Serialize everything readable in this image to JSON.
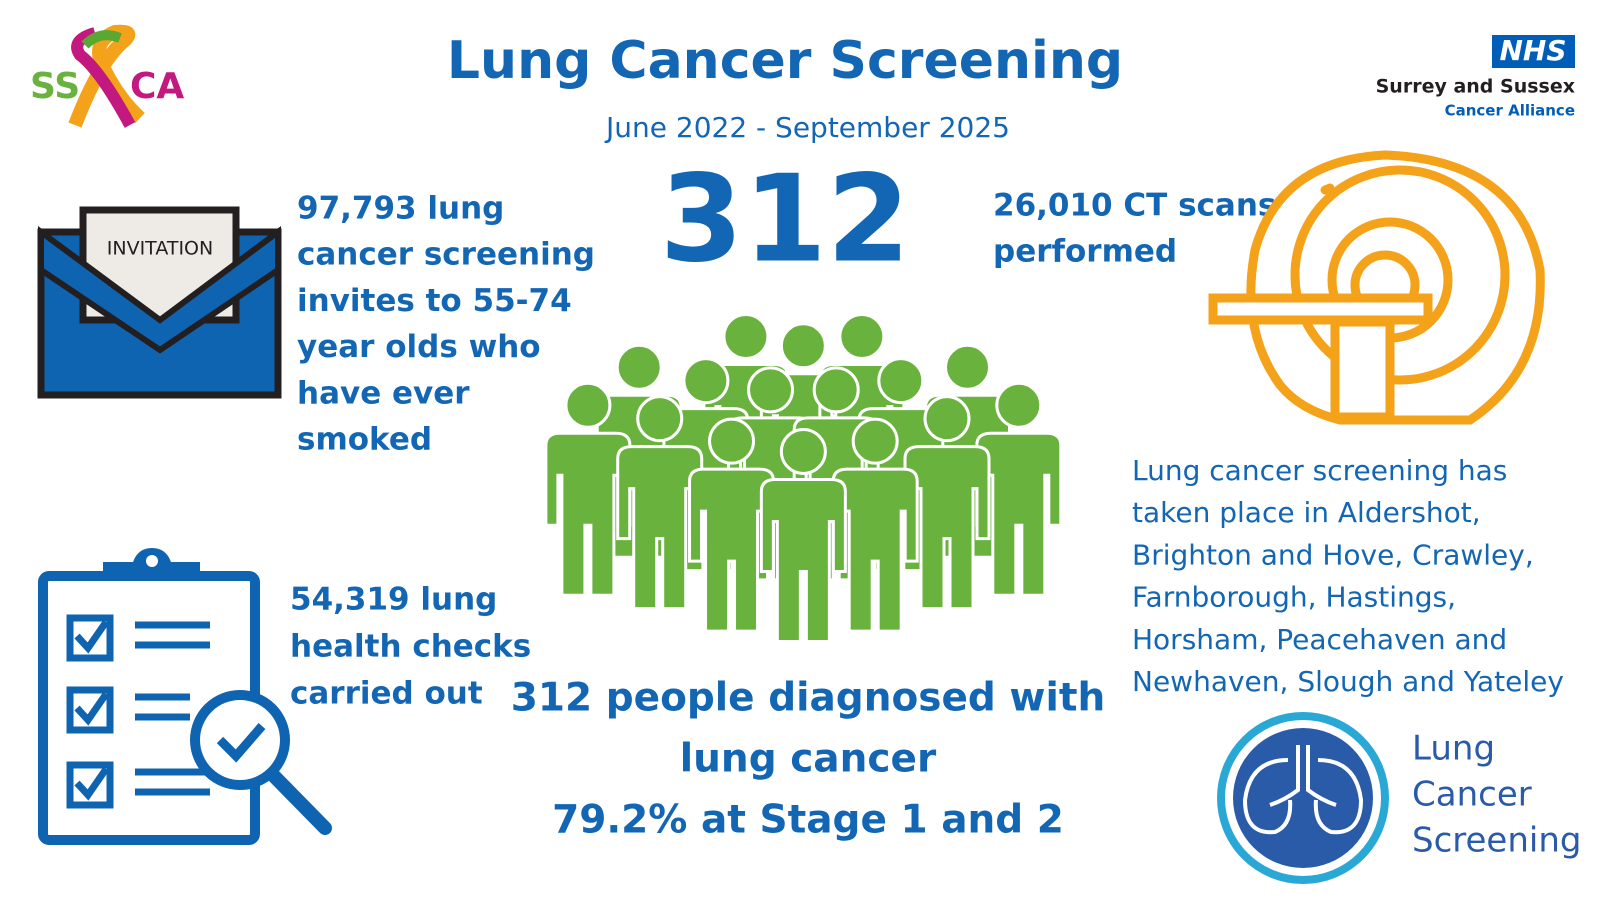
{
  "logo_left": {
    "left": "SS",
    "right": "CA"
  },
  "logo_right": {
    "badge": "NHS",
    "line1": "Surrey and Sussex",
    "line2": "Cancer Alliance"
  },
  "header": {
    "title": "Lung Cancer Screening",
    "subtitle": "June 2022 - September 2025"
  },
  "headline_number": "312",
  "invitation": {
    "label": "INVITATION",
    "lines": [
      "97,793 lung",
      "cancer screening",
      "invites to 55-74",
      "year olds who",
      "have ever",
      "smoked"
    ]
  },
  "ct_scans": {
    "lines": [
      "26,010  CT scans",
      "performed"
    ]
  },
  "locations": {
    "lines": [
      "Lung cancer screening has",
      "taken place in Aldershot,",
      "Brighton and Hove, Crawley,",
      "Farnborough, Hastings,",
      "Horsham, Peacehaven and",
      "Newhaven, Slough and Yateley"
    ]
  },
  "health_checks": {
    "lines": [
      "54,319 lung",
      "health checks",
      "carried out"
    ]
  },
  "diagnosed": {
    "lines": [
      "312 people diagnosed with",
      "lung cancer",
      "79.2% at Stage 1 and 2"
    ]
  },
  "programme_logo": {
    "lines": [
      "Lung",
      "Cancer",
      "Screening"
    ]
  }
}
